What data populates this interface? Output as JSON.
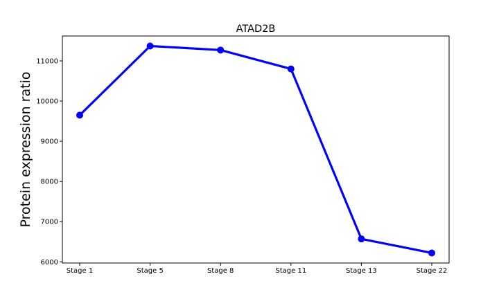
{
  "chart_data": {
    "type": "line",
    "title": "ATAD2B",
    "xlabel": "",
    "ylabel": "Protein expression ratio",
    "categories": [
      "Stage 1",
      "Stage 5",
      "Stage 8",
      "Stage 11",
      "Stage 13",
      "Stage 22"
    ],
    "series": [
      {
        "values": [
          9650,
          11370,
          11270,
          10800,
          6570,
          6220
        ],
        "color": "#0000ff"
      }
    ],
    "ylim": [
      5970,
      11620
    ],
    "yticks": [
      6000,
      7000,
      8000,
      9000,
      10000,
      11000
    ],
    "grid": false,
    "legend": false
  }
}
